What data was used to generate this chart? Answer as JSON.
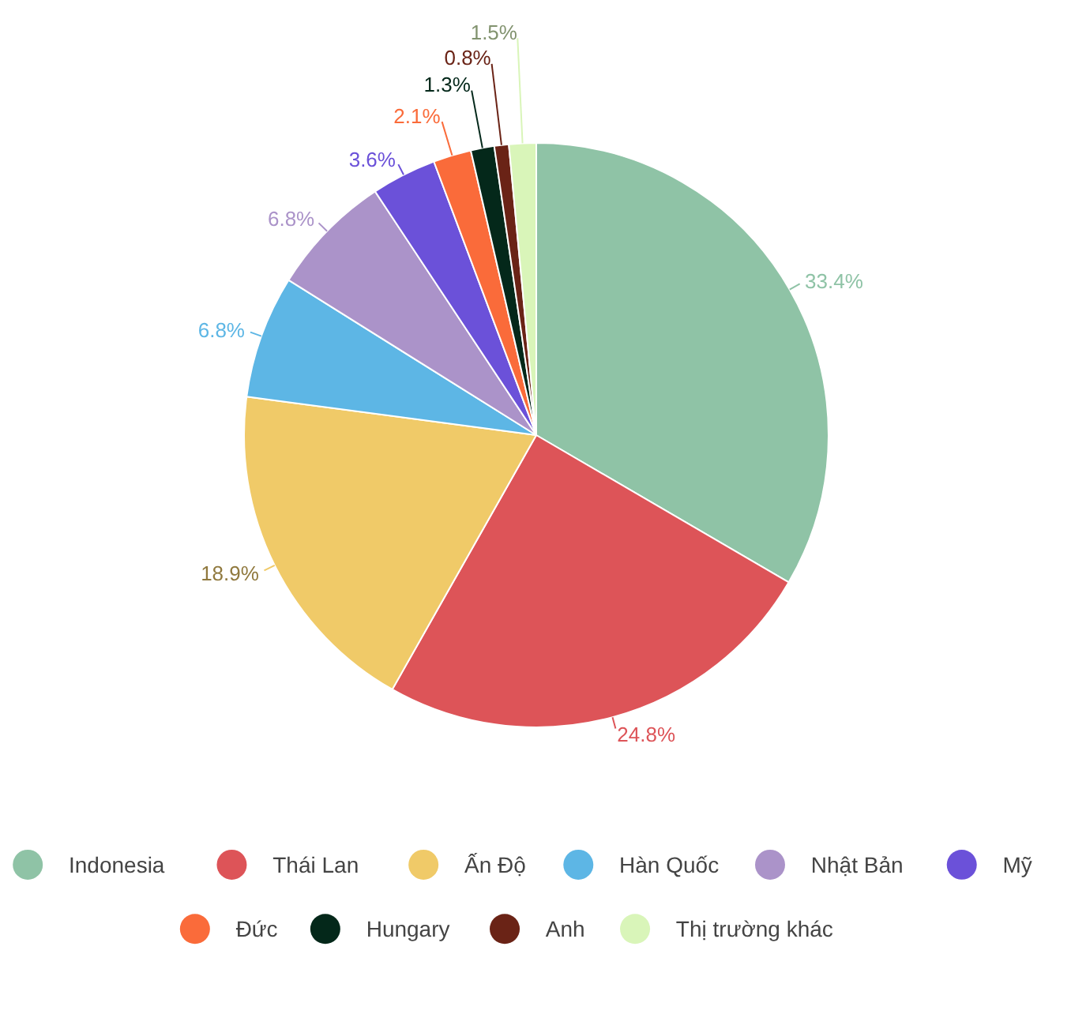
{
  "chart_data": {
    "type": "pie",
    "categories": [
      "Indonesia",
      "Thái Lan",
      "Ấn Độ",
      "Hàn Quốc",
      "Nhật Bản",
      "Mỹ",
      "Đức",
      "Hungary",
      "Anh",
      "Thị trường khác"
    ],
    "values": [
      33.4,
      24.8,
      18.9,
      6.8,
      6.8,
      3.6,
      2.1,
      1.3,
      0.8,
      1.5
    ],
    "colors": [
      "#8fc3a6",
      "#dd5458",
      "#f0ca68",
      "#5db6e5",
      "#ab93c9",
      "#6b51d9",
      "#fa6b3a",
      "#04281a",
      "#6a2316",
      "#d9f5b9"
    ],
    "value_labels": [
      "33.4%",
      "24.8%",
      "18.9%",
      "6.8%",
      "6.8%",
      "3.6%",
      "2.1%",
      "1.3%",
      "0.8%",
      "1.5%"
    ],
    "legend": "bottom"
  }
}
